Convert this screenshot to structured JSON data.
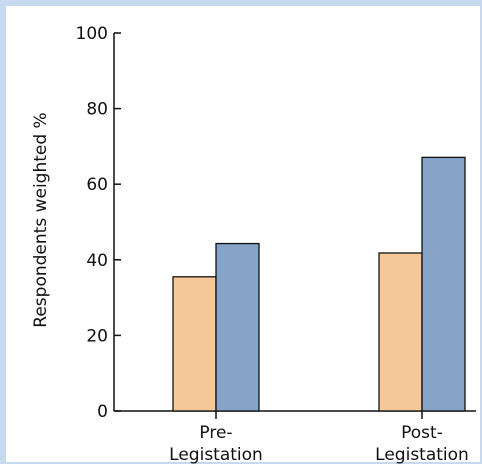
{
  "chart_data": {
    "type": "bar",
    "ylabel": "Respondents weighted %",
    "ylim": [
      0,
      100
    ],
    "yticks": [
      0,
      20,
      40,
      60,
      80,
      100
    ],
    "ytick_labels": [
      "0",
      "20",
      "40",
      "60",
      "80",
      "100"
    ],
    "categories": [
      {
        "lines": [
          "Pre-",
          "Legistation"
        ]
      },
      {
        "lines": [
          "Post-",
          "Legistation"
        ]
      }
    ],
    "series": [
      {
        "values": [
          35.5,
          41.8
        ],
        "color": "#f6c898"
      },
      {
        "values": [
          44.3,
          67.1
        ],
        "color": "#86a3c8"
      }
    ]
  }
}
